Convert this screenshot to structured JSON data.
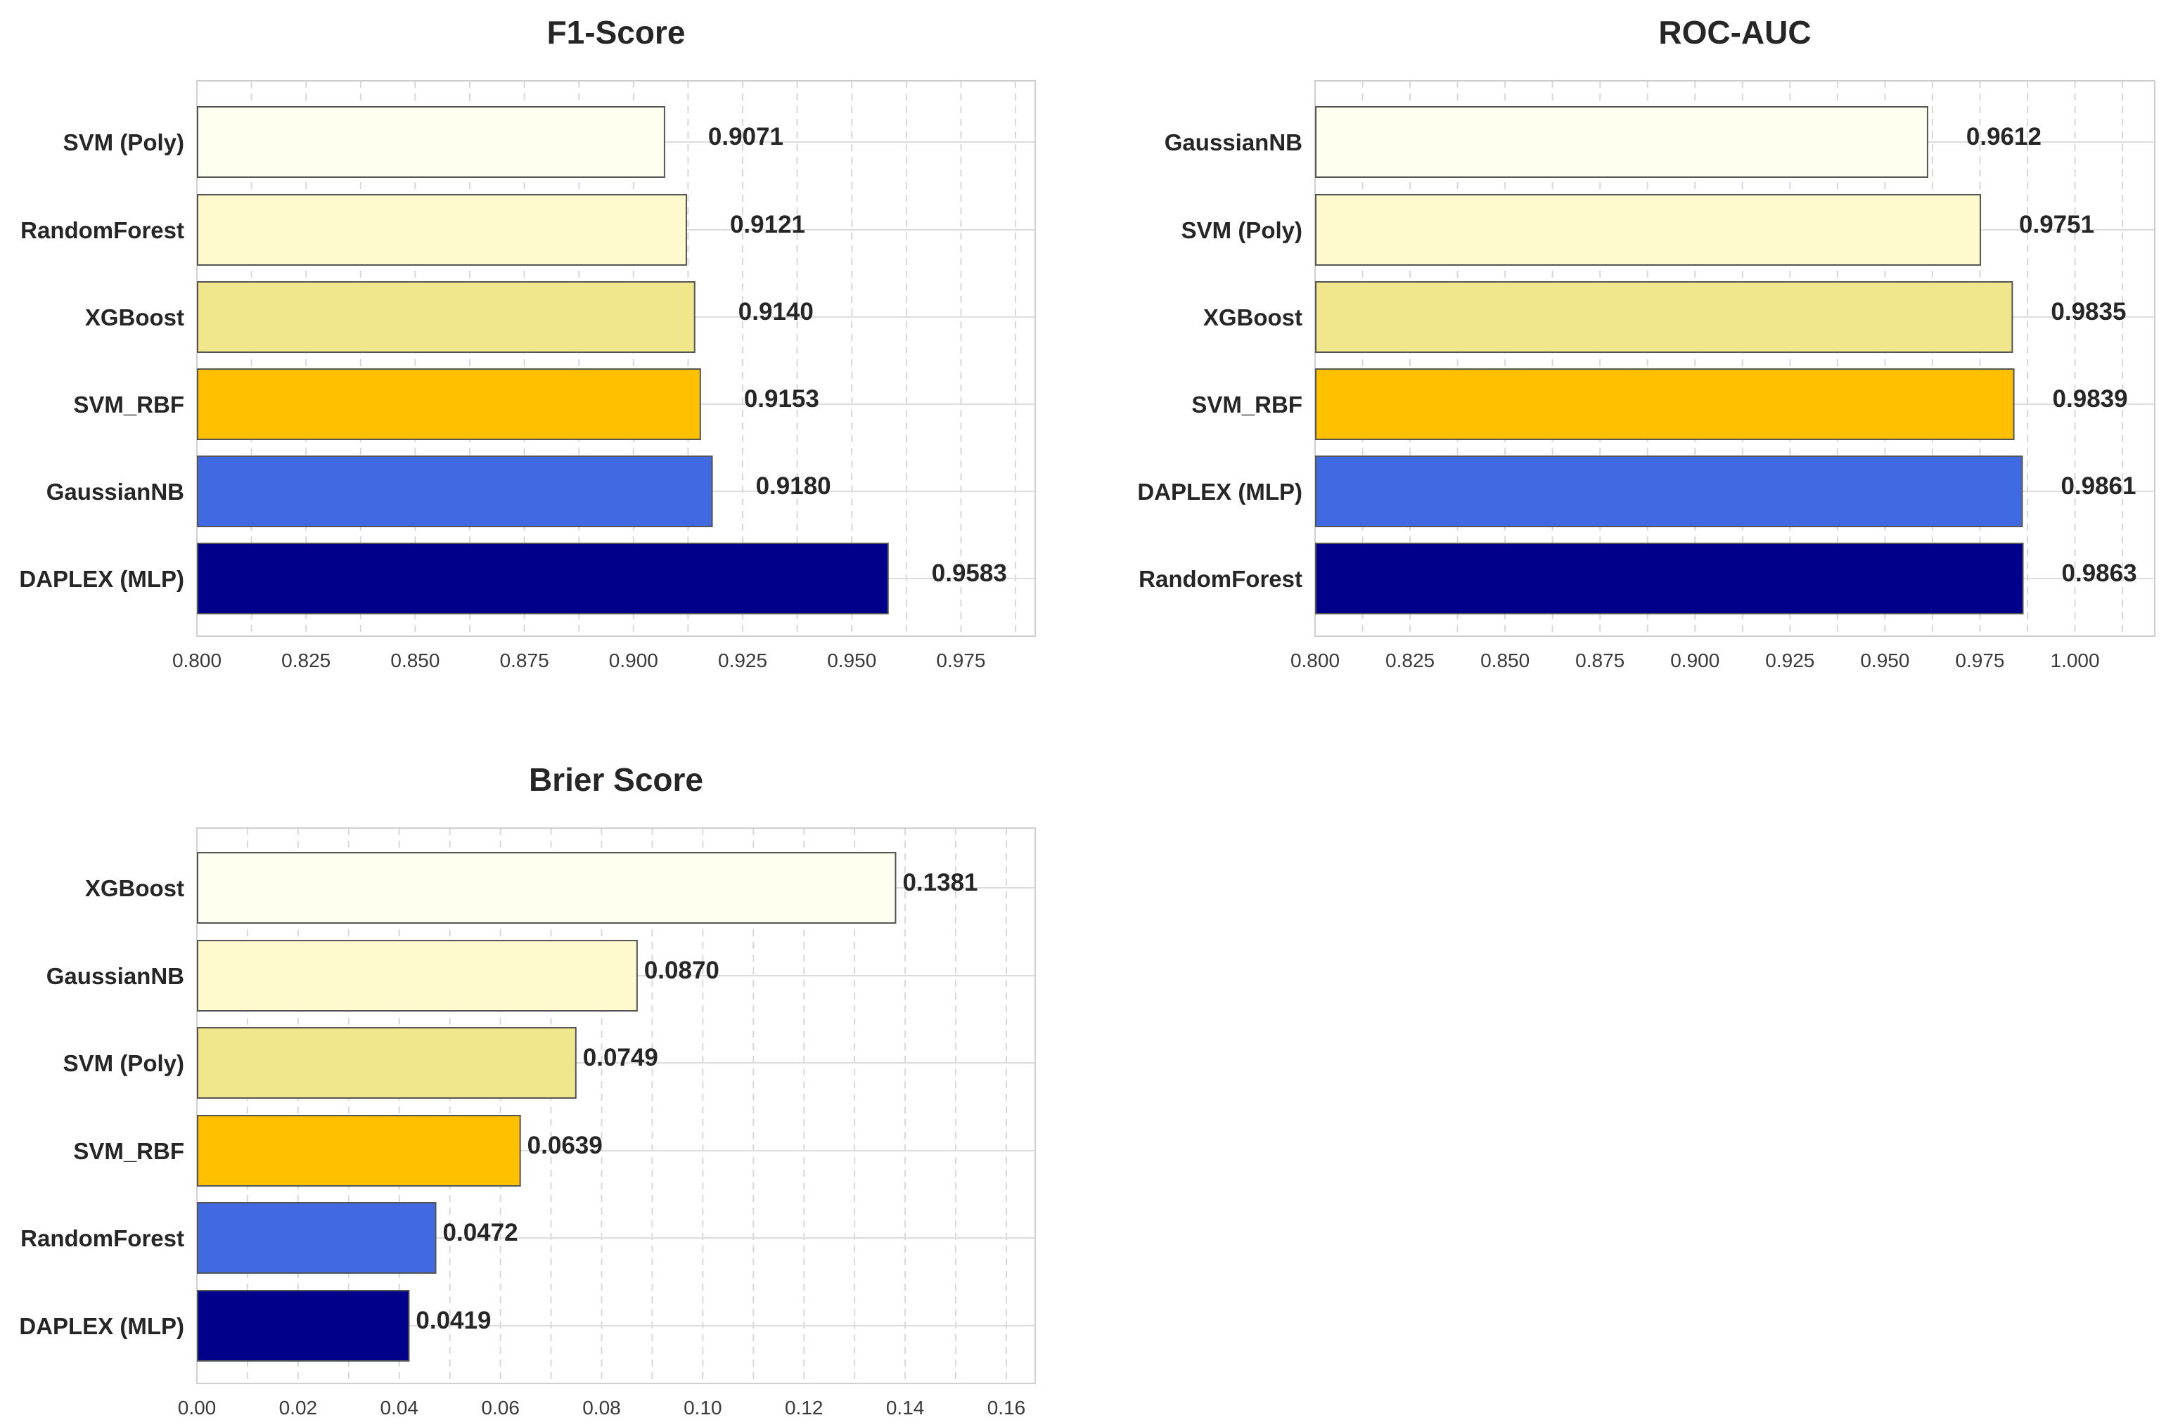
{
  "chart_data": [
    {
      "id": "f1",
      "type": "bar",
      "orientation": "horizontal",
      "title": "F1-Score",
      "categories": [
        "SVM (Poly)",
        "RandomForest",
        "XGBoost",
        "SVM_RBF",
        "GaussianNB",
        "DAPLEX (MLP)"
      ],
      "values": [
        0.9071,
        0.9121,
        0.914,
        0.9153,
        0.918,
        0.9583
      ],
      "value_labels": [
        "0.9071",
        "0.9121",
        "0.9140",
        "0.9153",
        "0.9180",
        "0.9583"
      ],
      "colors": [
        "#FFFFF0",
        "#FFFACD",
        "#F0E68C",
        "#FFC000",
        "#4169E1",
        "#00008B"
      ],
      "xlim": [
        0.8,
        0.992
      ],
      "ticks": [
        0.8,
        0.825,
        0.85,
        0.875,
        0.9,
        0.925,
        0.95,
        0.975
      ],
      "tick_labels": [
        "0.800",
        "0.825",
        "0.850",
        "0.875",
        "0.900",
        "0.925",
        "0.950",
        "0.975"
      ],
      "minor_grid_step": 0.0125
    },
    {
      "id": "roc",
      "type": "bar",
      "orientation": "horizontal",
      "title": "ROC-AUC",
      "categories": [
        "GaussianNB",
        "SVM (Poly)",
        "XGBoost",
        "SVM_RBF",
        "DAPLEX (MLP)",
        "RandomForest"
      ],
      "values": [
        0.9612,
        0.9751,
        0.9835,
        0.9839,
        0.9861,
        0.9863
      ],
      "value_labels": [
        "0.9612",
        "0.9751",
        "0.9835",
        "0.9839",
        "0.9861",
        "0.9863"
      ],
      "colors": [
        "#FFFFF0",
        "#FFFACD",
        "#F0E68C",
        "#FFC000",
        "#4169E1",
        "#00008B"
      ],
      "xlim": [
        0.8,
        1.021
      ],
      "ticks": [
        0.8,
        0.825,
        0.85,
        0.875,
        0.9,
        0.925,
        0.95,
        0.975,
        1.0
      ],
      "tick_labels": [
        "0.800",
        "0.825",
        "0.850",
        "0.875",
        "0.900",
        "0.925",
        "0.950",
        "0.975",
        "1.000"
      ],
      "minor_grid_step": 0.0125
    },
    {
      "id": "brier",
      "type": "bar",
      "orientation": "horizontal",
      "title": "Brier Score",
      "categories": [
        "XGBoost",
        "GaussianNB",
        "SVM (Poly)",
        "SVM_RBF",
        "RandomForest",
        "DAPLEX (MLP)"
      ],
      "values": [
        0.1381,
        0.087,
        0.0749,
        0.0639,
        0.0472,
        0.0419
      ],
      "value_labels": [
        "0.1381",
        "0.0870",
        "0.0749",
        "0.0639",
        "0.0472",
        "0.0419"
      ],
      "colors": [
        "#FFFFF0",
        "#FFFACD",
        "#F0E68C",
        "#FFC000",
        "#4169E1",
        "#00008B"
      ],
      "xlim": [
        0.0,
        0.1657
      ],
      "ticks": [
        0.0,
        0.02,
        0.04,
        0.06,
        0.08,
        0.1,
        0.12,
        0.14,
        0.16
      ],
      "tick_labels": [
        "0.00",
        "0.02",
        "0.04",
        "0.06",
        "0.08",
        "0.10",
        "0.12",
        "0.14",
        "0.16"
      ],
      "minor_grid_step": 0.01
    }
  ]
}
